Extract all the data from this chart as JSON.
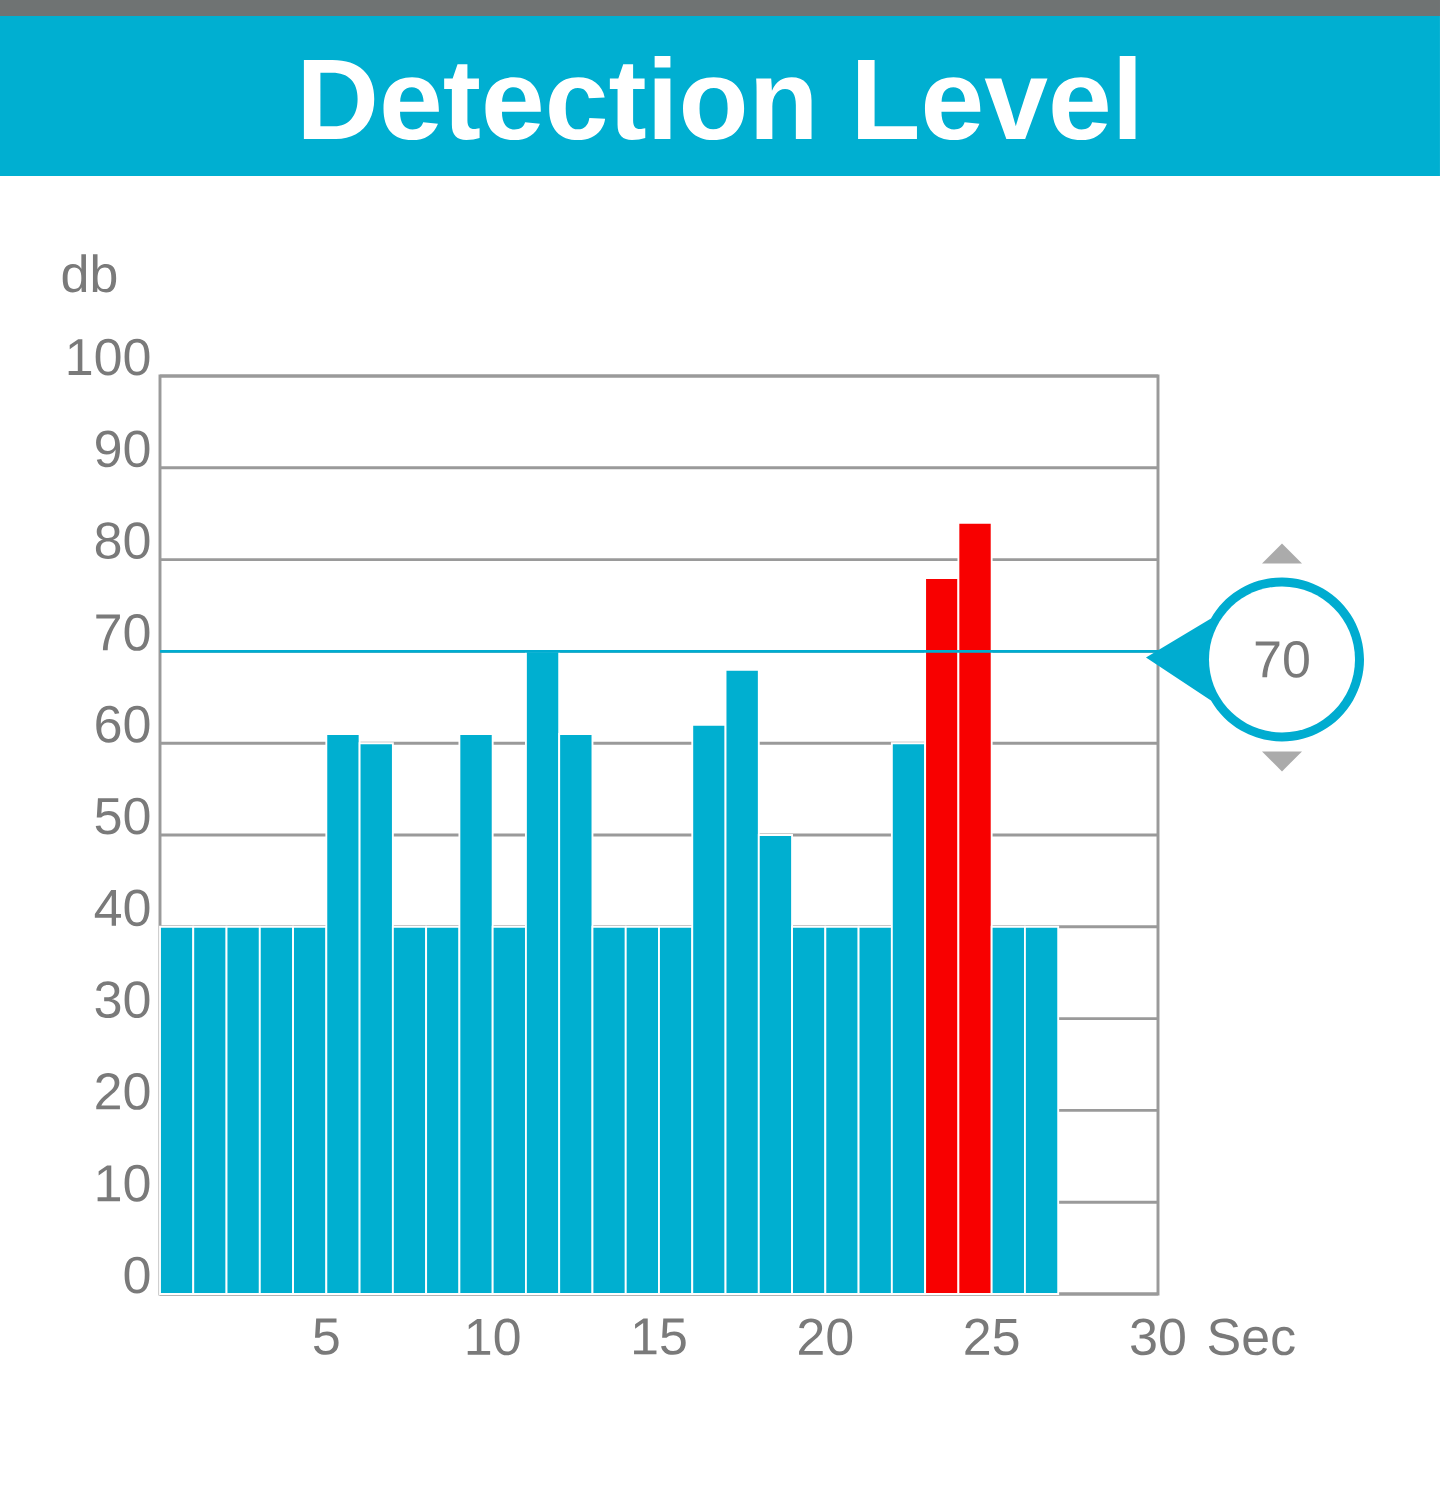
{
  "chart_data": {
    "type": "bar",
    "title": "Detection Level",
    "xlabel": "Sec",
    "ylabel": "db",
    "x": [
      0.5,
      1.5,
      2.5,
      3.5,
      4.5,
      5.5,
      6.5,
      7.5,
      8.5,
      9.5,
      10.5,
      11.5,
      12.5,
      13.5,
      14.5,
      15.5,
      16.5,
      17.5,
      18.5,
      19.5,
      20.5,
      21.5,
      22.5,
      23.5,
      24.5,
      25.5,
      26.5
    ],
    "values": [
      40,
      40,
      40,
      40,
      40,
      61,
      60,
      40,
      40,
      61,
      40,
      70,
      61,
      40,
      40,
      40,
      62,
      68,
      50,
      40,
      40,
      40,
      60,
      78,
      84,
      40,
      40
    ],
    "colors": [
      "#00afd0",
      "#00afd0",
      "#00afd0",
      "#00afd0",
      "#00afd0",
      "#00afd0",
      "#00afd0",
      "#00afd0",
      "#00afd0",
      "#00afd0",
      "#00afd0",
      "#00afd0",
      "#00afd0",
      "#00afd0",
      "#00afd0",
      "#00afd0",
      "#00afd0",
      "#00afd0",
      "#00afd0",
      "#00afd0",
      "#00afd0",
      "#00afd0",
      "#00afd0",
      "#f80000",
      "#f80000",
      "#00afd0",
      "#00afd0"
    ],
    "xlim": [
      0,
      30
    ],
    "ylim": [
      0,
      100
    ],
    "xticks": [
      5,
      10,
      15,
      20,
      25,
      30
    ],
    "yticks": [
      0,
      10,
      20,
      30,
      40,
      50,
      60,
      70,
      80,
      90,
      100
    ],
    "grid": "y",
    "ref_lines": [
      {
        "axis": "y",
        "value": 70,
        "label": "70",
        "color": "#00acd0"
      }
    ]
  }
}
